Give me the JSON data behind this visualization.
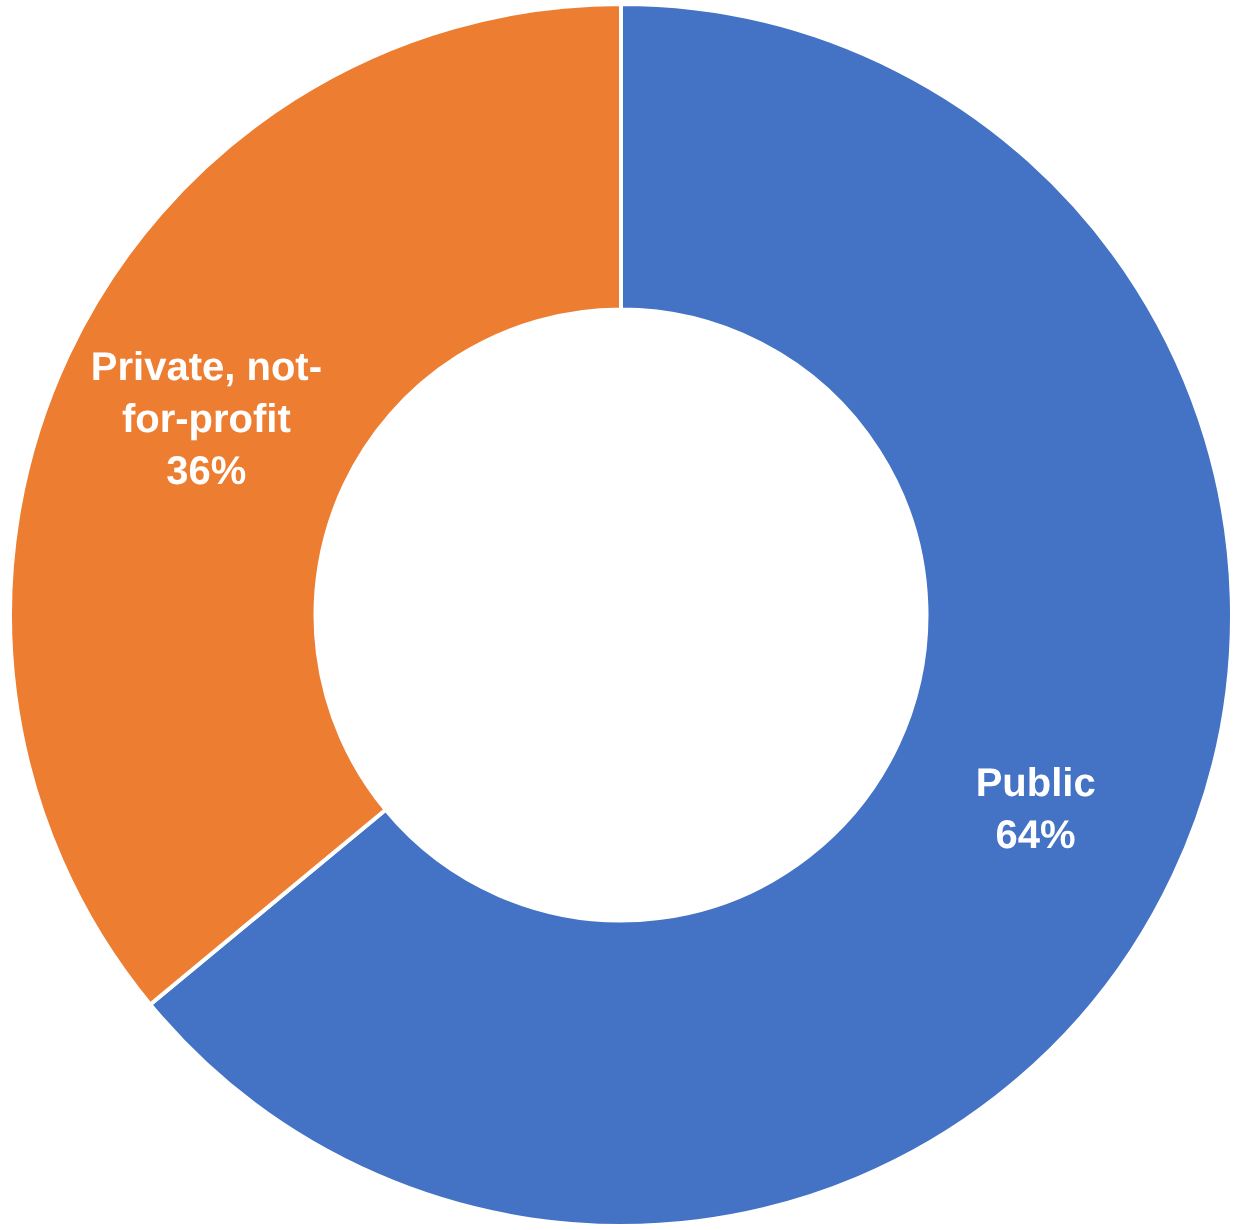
{
  "chart_data": {
    "type": "donut",
    "categories": [
      "Public",
      "Private, not-for-profit"
    ],
    "values": [
      64,
      36
    ],
    "value_labels": [
      "64%",
      "36%"
    ],
    "colors": [
      "#4472c4",
      "#ed7d31"
    ],
    "legend": false
  }
}
